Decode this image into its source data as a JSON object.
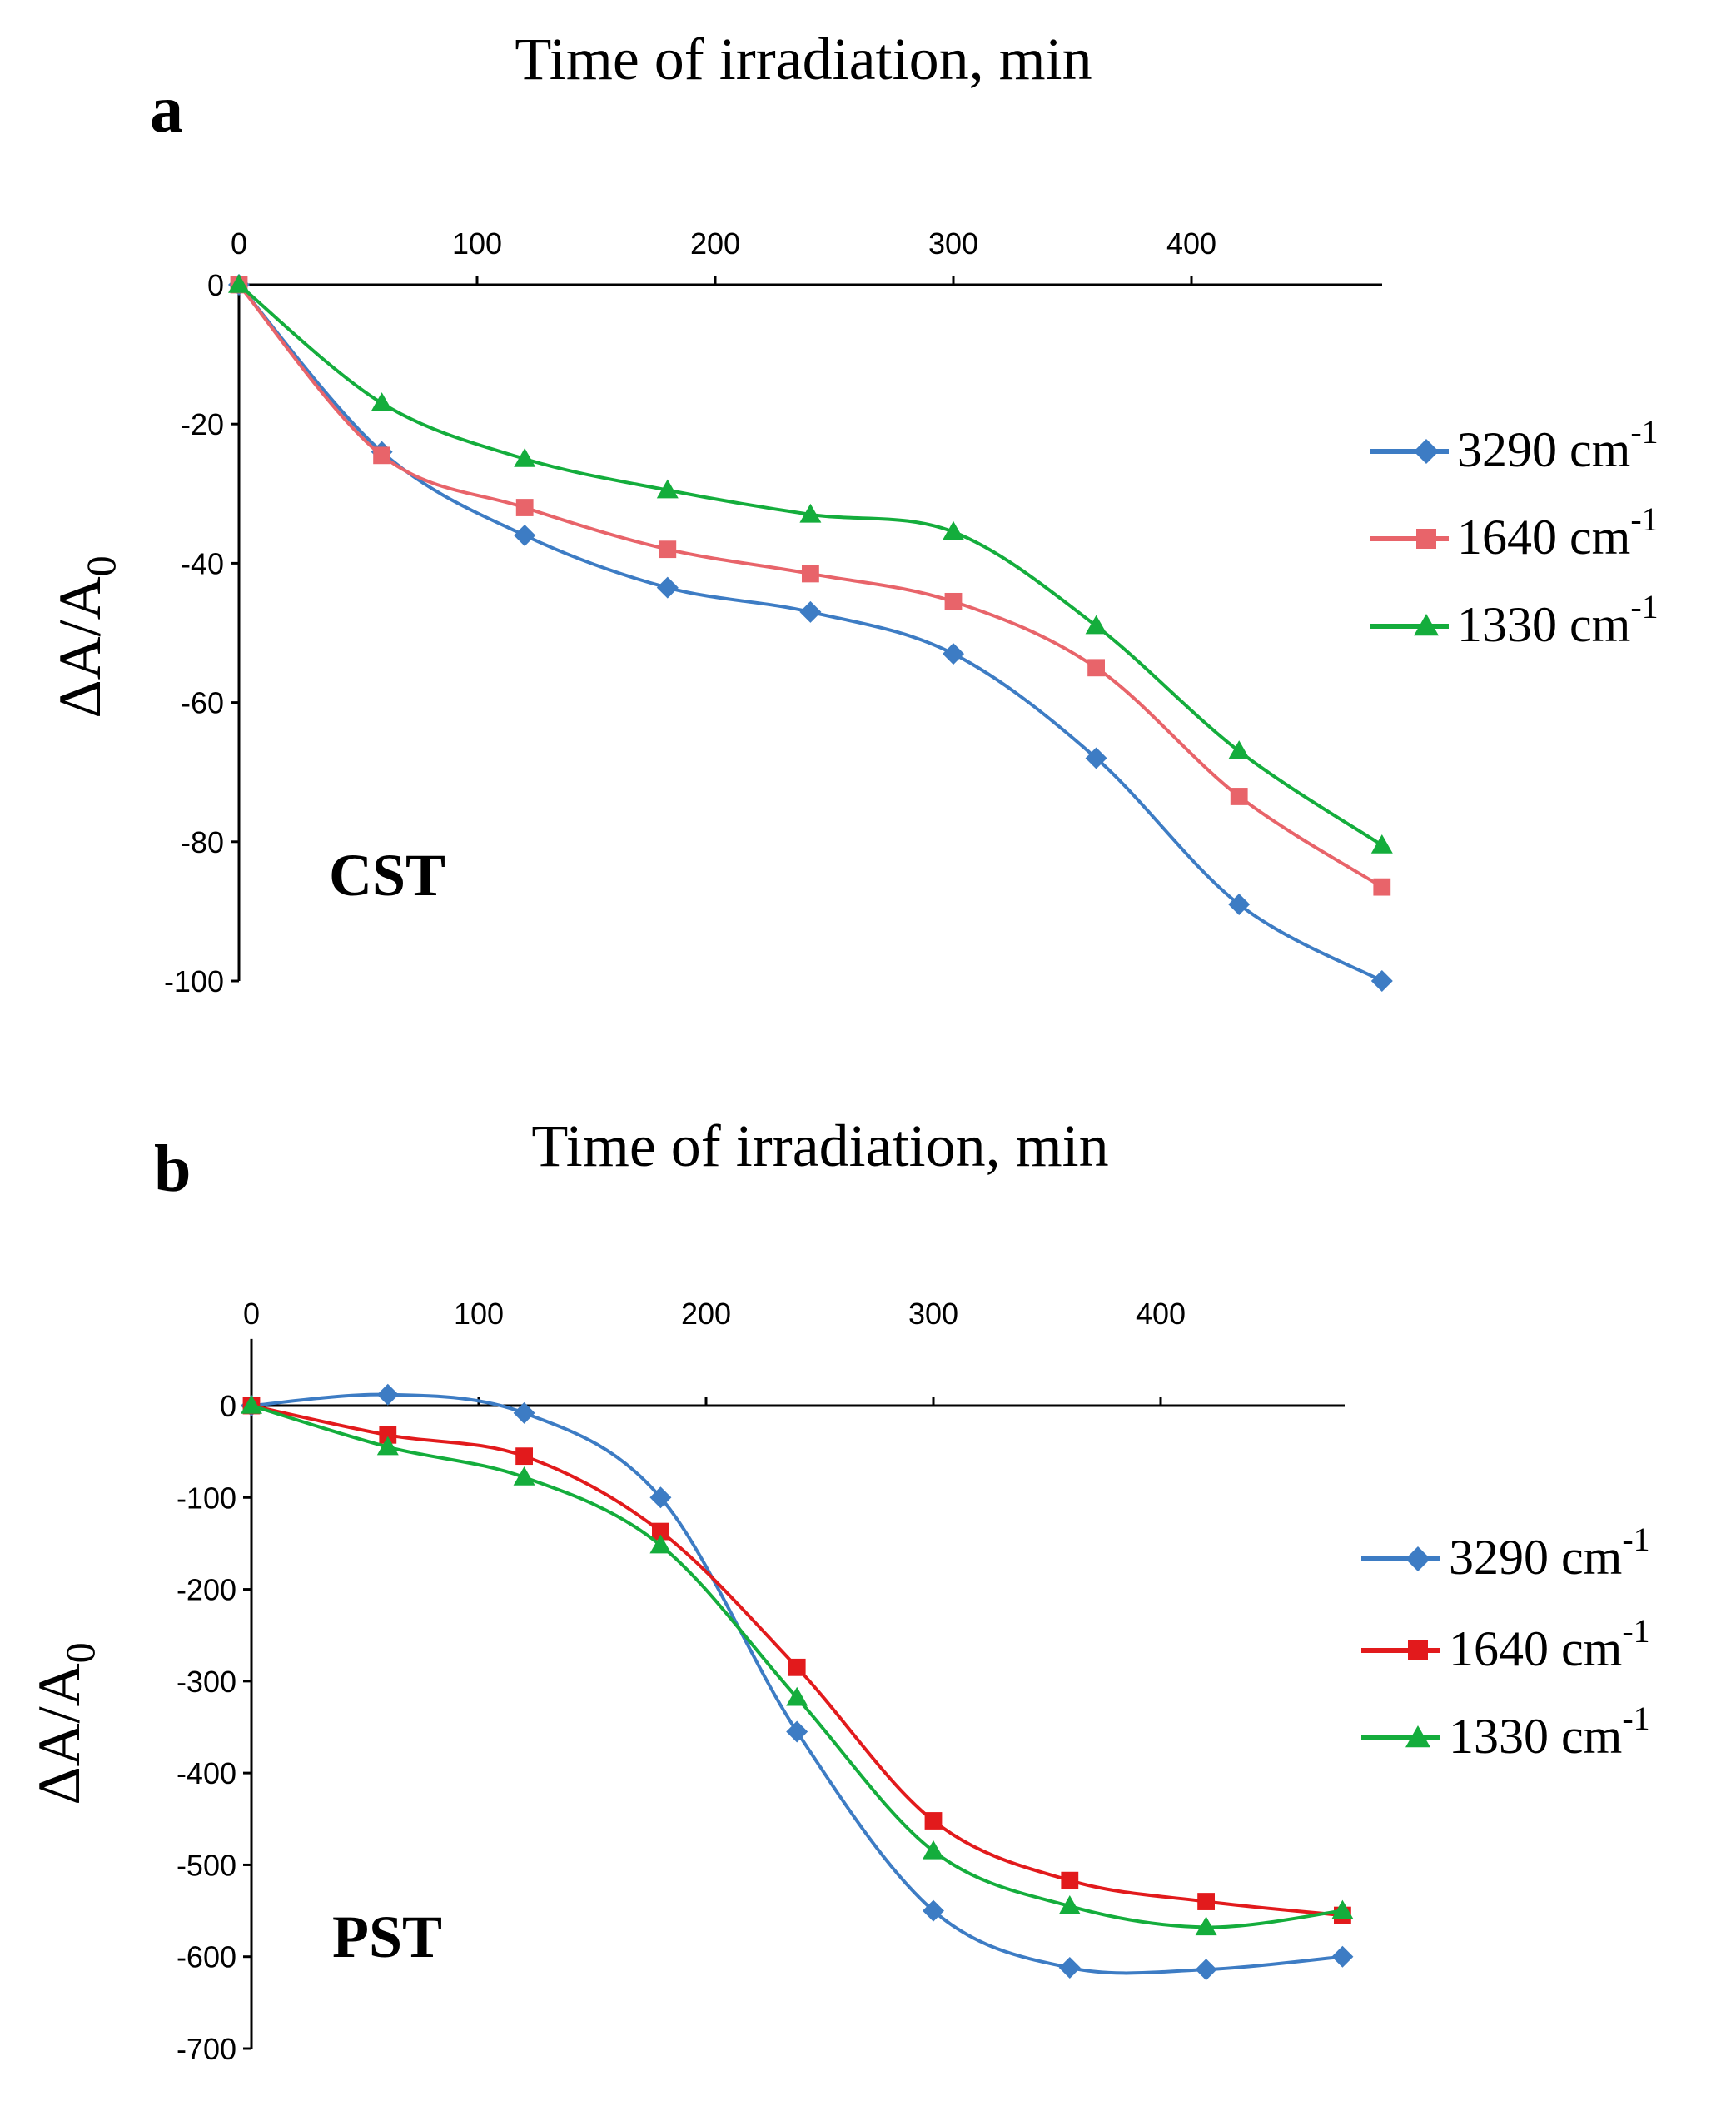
{
  "figure": {
    "panel_a_label": "a",
    "panel_b_label": "b"
  },
  "colors": {
    "blue": "#3d7cc4",
    "red": "#e21a1c",
    "red_light": "#e8646a",
    "green": "#14ad3c",
    "axis": "#000000"
  },
  "chart_data": [
    {
      "type": "line",
      "panel": "a",
      "title": "Time of irradiation, min",
      "xlabel": "Time of irradiation, min",
      "ylabel": "ΔA/A",
      "ylabel_sub": "0",
      "sample_label": "CST",
      "xlim": [
        0,
        480
      ],
      "ylim": [
        -100,
        0
      ],
      "xticks": [
        "0",
        "100",
        "200",
        "300",
        "400"
      ],
      "yticks": [
        "0",
        "-20",
        "-40",
        "-60",
        "-80",
        "-100"
      ],
      "x": [
        0,
        60,
        120,
        180,
        240,
        300,
        360,
        420,
        480
      ],
      "series": [
        {
          "name": "3290 cm",
          "sup": "-1",
          "marker": "diamond",
          "color": "#3d7cc4",
          "values": [
            0,
            -24,
            -36,
            -43.5,
            -47,
            -53,
            -68,
            -89,
            -100
          ]
        },
        {
          "name": "1640 cm",
          "sup": "-1",
          "marker": "square",
          "color": "#e8646a",
          "values": [
            0,
            -24.5,
            -32,
            -38,
            -41.5,
            -45.5,
            -55,
            -73.5,
            -86.5
          ]
        },
        {
          "name": "1330 cm",
          "sup": "-1",
          "marker": "triangle",
          "color": "#14ad3c",
          "values": [
            0,
            -17,
            -25,
            -29.5,
            -33,
            -35.5,
            -49,
            -67,
            -80.5
          ]
        }
      ],
      "legend_position": "right"
    },
    {
      "type": "line",
      "panel": "b",
      "title": "Time of irradiation, min",
      "xlabel": "Time of irradiation, min",
      "ylabel": "ΔA/A",
      "ylabel_sub": "0",
      "sample_label": "PST",
      "xlim": [
        0,
        480
      ],
      "ylim": [
        -700,
        50
      ],
      "xticks": [
        "0",
        "100",
        "200",
        "300",
        "400"
      ],
      "yticks": [
        "0",
        "-100",
        "-200",
        "-300",
        "-400",
        "-500",
        "-600",
        "-700"
      ],
      "x": [
        0,
        60,
        120,
        180,
        240,
        300,
        360,
        420,
        480
      ],
      "series": [
        {
          "name": "3290 cm",
          "sup": "-1",
          "marker": "diamond",
          "color": "#3d7cc4",
          "values": [
            0,
            12,
            -8,
            -100,
            -355,
            -550,
            -612,
            -614,
            -600
          ]
        },
        {
          "name": "1640 cm",
          "sup": "-1",
          "marker": "square",
          "color": "#e21a1c",
          "values": [
            0,
            -32,
            -55,
            -137,
            -285,
            -452,
            -517,
            -540,
            -555
          ]
        },
        {
          "name": "1330 cm",
          "sup": "-1",
          "marker": "triangle",
          "color": "#14ad3c",
          "values": [
            0,
            -45,
            -78,
            -152,
            -318,
            -485,
            -545,
            -568,
            -550
          ]
        }
      ],
      "legend_position": "right"
    }
  ]
}
